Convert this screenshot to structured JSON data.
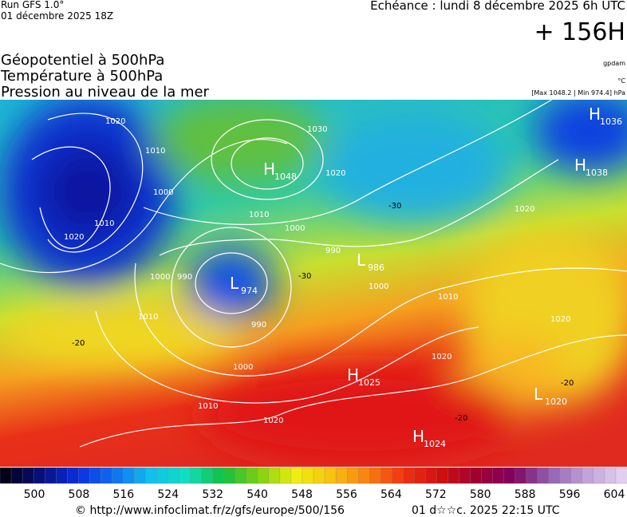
{
  "header": {
    "run": "Run GFS 1.0°",
    "date": "01 décembre 2025 18Z",
    "echeance": "Echéance : lundi 8 décembre 2025 6h UTC",
    "lead": "+ 156H",
    "fields": [
      "Géopotentiel à 500hPa",
      "Température à 500hPa",
      "Pression au niveau de la mer"
    ],
    "units": [
      "gpdam",
      "°C",
      "[Max 1048.2 | Min 974.4] hPa"
    ]
  },
  "centers": [
    {
      "letter": "H",
      "value": "1036"
    },
    {
      "letter": "H",
      "value": "1038"
    },
    {
      "letter": "H",
      "value": "1048"
    },
    {
      "letter": "L",
      "value": "974"
    },
    {
      "letter": "L",
      "value": "986"
    },
    {
      "letter": "H",
      "value": "1025"
    },
    {
      "letter": "L",
      "value": "1020"
    },
    {
      "letter": "H",
      "value": "1024"
    }
  ],
  "isobar_labels": [
    "1020",
    "1010",
    "1000",
    "1010",
    "1020",
    "1030",
    "1020",
    "1010",
    "1000",
    "990",
    "1000",
    "990",
    "1000",
    "1010",
    "990",
    "1000",
    "1010",
    "1020",
    "1020",
    "1020",
    "1010",
    "1020"
  ],
  "temp_labels": [
    "-30",
    "-30",
    "-20",
    "-20",
    "-20"
  ],
  "colorbar": {
    "labels": [
      "500",
      "508",
      "516",
      "524",
      "532",
      "540",
      "548",
      "556",
      "564",
      "572",
      "580",
      "588",
      "596",
      "604"
    ]
  },
  "footer": {
    "source": "© http://www.infoclimat.fr/z/gfs/europe/500/156",
    "stamp": "01 d☆☆c. 2025 22:15 UTC"
  }
}
